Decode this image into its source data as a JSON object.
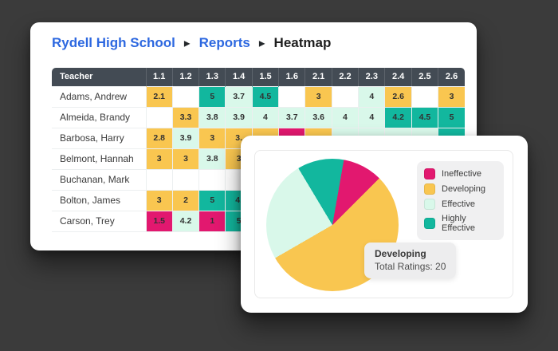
{
  "page": {
    "background": "#3B3B3B"
  },
  "colors": {
    "ineffective": "#E2186F",
    "developing": "#F9C650",
    "effective": "#D9F8EA",
    "highly_effective": "#12B79E",
    "empty": "#FFFFFF",
    "header_bg": "#434B54",
    "breadcrumb_link": "#2D68E0"
  },
  "breadcrumb": {
    "separator": "▶",
    "items": [
      "Rydell High School",
      "Reports",
      "Heatmap"
    ]
  },
  "heatmap": {
    "teacher_header": "Teacher",
    "columns": [
      "1.1",
      "1.2",
      "1.3",
      "1.4",
      "1.5",
      "1.6",
      "2.1",
      "2.2",
      "2.3",
      "2.4",
      "2.5",
      "2.6"
    ],
    "rows": [
      {
        "teacher": "Adams, Andrew",
        "cells": [
          {
            "v": "2.1",
            "c": "developing"
          },
          {
            "v": "",
            "c": "empty"
          },
          {
            "v": "5",
            "c": "highly_effective"
          },
          {
            "v": "3.7",
            "c": "effective"
          },
          {
            "v": "4.5",
            "c": "highly_effective"
          },
          {
            "v": "",
            "c": "empty"
          },
          {
            "v": "3",
            "c": "developing"
          },
          {
            "v": "",
            "c": "empty"
          },
          {
            "v": "4",
            "c": "effective"
          },
          {
            "v": "2.6",
            "c": "developing"
          },
          {
            "v": "",
            "c": "empty"
          },
          {
            "v": "3",
            "c": "developing"
          }
        ]
      },
      {
        "teacher": "Almeida, Brandy",
        "cells": [
          {
            "v": "",
            "c": "empty"
          },
          {
            "v": "3.3",
            "c": "developing"
          },
          {
            "v": "3.8",
            "c": "effective"
          },
          {
            "v": "3.9",
            "c": "effective"
          },
          {
            "v": "4",
            "c": "effective"
          },
          {
            "v": "3.7",
            "c": "effective"
          },
          {
            "v": "3.6",
            "c": "effective"
          },
          {
            "v": "4",
            "c": "effective"
          },
          {
            "v": "4",
            "c": "effective"
          },
          {
            "v": "4.2",
            "c": "highly_effective"
          },
          {
            "v": "4.5",
            "c": "highly_effective"
          },
          {
            "v": "5",
            "c": "highly_effective"
          }
        ]
      },
      {
        "teacher": "Barbosa, Harry",
        "cells": [
          {
            "v": "2.8",
            "c": "developing"
          },
          {
            "v": "3.9",
            "c": "effective"
          },
          {
            "v": "3",
            "c": "developing"
          },
          {
            "v": "3.",
            "c": "developing"
          },
          {
            "v": "",
            "c": "developing"
          },
          {
            "v": "",
            "c": "ineffective"
          },
          {
            "v": "",
            "c": "developing"
          },
          {
            "v": "",
            "c": "effective"
          },
          {
            "v": "",
            "c": "effective"
          },
          {
            "v": "",
            "c": "effective"
          },
          {
            "v": "",
            "c": "effective"
          },
          {
            "v": "",
            "c": "highly_effective"
          }
        ]
      },
      {
        "teacher": "Belmont, Hannah",
        "cells": [
          {
            "v": "3",
            "c": "developing"
          },
          {
            "v": "3",
            "c": "developing"
          },
          {
            "v": "3.8",
            "c": "effective"
          },
          {
            "v": "3",
            "c": "developing"
          },
          {
            "v": "",
            "c": "empty"
          },
          {
            "v": "",
            "c": "empty"
          },
          {
            "v": "",
            "c": "empty"
          },
          {
            "v": "",
            "c": "empty"
          },
          {
            "v": "",
            "c": "empty"
          },
          {
            "v": "",
            "c": "empty"
          },
          {
            "v": "",
            "c": "empty"
          },
          {
            "v": "",
            "c": "empty"
          }
        ]
      },
      {
        "teacher": "Buchanan, Mark",
        "cells": [
          {
            "v": "",
            "c": "empty"
          },
          {
            "v": "",
            "c": "empty"
          },
          {
            "v": "",
            "c": "empty"
          },
          {
            "v": "",
            "c": "empty"
          },
          {
            "v": "",
            "c": "empty"
          },
          {
            "v": "",
            "c": "empty"
          },
          {
            "v": "",
            "c": "empty"
          },
          {
            "v": "",
            "c": "empty"
          },
          {
            "v": "",
            "c": "empty"
          },
          {
            "v": "",
            "c": "empty"
          },
          {
            "v": "",
            "c": "empty"
          },
          {
            "v": "",
            "c": "empty"
          }
        ]
      },
      {
        "teacher": "Bolton, James",
        "cells": [
          {
            "v": "3",
            "c": "developing"
          },
          {
            "v": "2",
            "c": "developing"
          },
          {
            "v": "5",
            "c": "highly_effective"
          },
          {
            "v": "4.",
            "c": "highly_effective"
          },
          {
            "v": "",
            "c": "empty"
          },
          {
            "v": "",
            "c": "empty"
          },
          {
            "v": "",
            "c": "empty"
          },
          {
            "v": "",
            "c": "empty"
          },
          {
            "v": "",
            "c": "empty"
          },
          {
            "v": "",
            "c": "empty"
          },
          {
            "v": "",
            "c": "empty"
          },
          {
            "v": "",
            "c": "empty"
          }
        ]
      },
      {
        "teacher": "Carson, Trey",
        "cells": [
          {
            "v": "1.5",
            "c": "ineffective"
          },
          {
            "v": "4.2",
            "c": "effective"
          },
          {
            "v": "1",
            "c": "ineffective"
          },
          {
            "v": "5",
            "c": "highly_effective"
          },
          {
            "v": "",
            "c": "empty"
          },
          {
            "v": "",
            "c": "empty"
          },
          {
            "v": "",
            "c": "empty"
          },
          {
            "v": "",
            "c": "empty"
          },
          {
            "v": "",
            "c": "empty"
          },
          {
            "v": "",
            "c": "empty"
          },
          {
            "v": "",
            "c": "empty"
          },
          {
            "v": "",
            "c": "empty"
          }
        ]
      }
    ]
  },
  "pie": {
    "start_angle_deg": 10,
    "slices": [
      {
        "label": "Ineffective",
        "color_key": "ineffective",
        "angle_deg": 35
      },
      {
        "label": "Developing",
        "color_key": "developing",
        "angle_deg": 195
      },
      {
        "label": "Effective",
        "color_key": "effective",
        "angle_deg": 89
      },
      {
        "label": "Highly Effective",
        "color_key": "highly_effective",
        "angle_deg": 41
      }
    ],
    "tooltip": {
      "title": "Developing",
      "text": "Total Ratings: 20"
    }
  },
  "chart_data": [
    {
      "type": "heatmap",
      "title": "Rydell High School — Reports — Heatmap",
      "x_categories": [
        "1.1",
        "1.2",
        "1.3",
        "1.4",
        "1.5",
        "1.6",
        "2.1",
        "2.2",
        "2.3",
        "2.4",
        "2.5",
        "2.6"
      ],
      "y_categories": [
        "Adams, Andrew",
        "Almeida, Brandy",
        "Barbosa, Harry",
        "Belmont, Hannah",
        "Buchanan, Mark",
        "Bolton, James",
        "Carson, Trey"
      ],
      "values": [
        [
          2.1,
          null,
          5,
          3.7,
          4.5,
          null,
          3,
          null,
          4,
          2.6,
          null,
          3
        ],
        [
          null,
          3.3,
          3.8,
          3.9,
          4,
          3.7,
          3.6,
          4,
          4,
          4.2,
          4.5,
          5
        ],
        [
          2.8,
          3.9,
          3,
          null,
          null,
          null,
          null,
          null,
          null,
          null,
          null,
          null
        ],
        [
          3,
          3,
          3.8,
          3,
          null,
          null,
          null,
          null,
          null,
          null,
          null,
          null
        ],
        [
          null,
          null,
          null,
          null,
          null,
          null,
          null,
          null,
          null,
          null,
          null,
          null
        ],
        [
          3,
          2,
          5,
          null,
          null,
          null,
          null,
          null,
          null,
          null,
          null,
          null
        ],
        [
          1.5,
          4.2,
          1,
          5,
          null,
          null,
          null,
          null,
          null,
          null,
          null,
          null
        ]
      ],
      "note": "Cells right of column ~1.4 in rows 3-7 are occluded by an overlapping pie-chart card"
    },
    {
      "type": "pie",
      "labels": [
        "Ineffective",
        "Developing",
        "Effective",
        "Highly Effective"
      ],
      "values_percent": [
        9.7,
        54.2,
        24.7,
        11.4
      ],
      "colors": [
        "#E2186F",
        "#F9C650",
        "#D9F8EA",
        "#12B79E"
      ],
      "start_angle_deg": 10,
      "legend_position": "top-right",
      "tooltip": {
        "label": "Developing",
        "text": "Total Ratings: 20"
      }
    }
  ]
}
